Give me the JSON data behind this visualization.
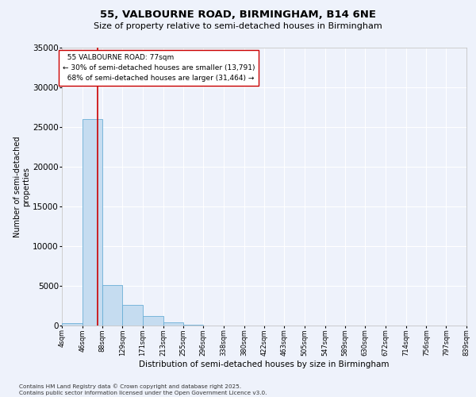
{
  "title_line1": "55, VALBOURNE ROAD, BIRMINGHAM, B14 6NE",
  "title_line2": "Size of property relative to semi-detached houses in Birmingham",
  "xlabel": "Distribution of semi-detached houses by size in Birmingham",
  "ylabel": "Number of semi-detached\nproperties",
  "footnote": "Contains HM Land Registry data © Crown copyright and database right 2025.\nContains public sector information licensed under the Open Government Licence v3.0.",
  "property_size": 77,
  "property_label": "55 VALBOURNE ROAD: 77sqm",
  "pct_smaller": 30,
  "pct_larger": 68,
  "count_smaller": 13791,
  "count_larger": 31464,
  "bin_labels": [
    "4sqm",
    "46sqm",
    "88sqm",
    "129sqm",
    "171sqm",
    "213sqm",
    "255sqm",
    "296sqm",
    "338sqm",
    "380sqm",
    "422sqm",
    "463sqm",
    "505sqm",
    "547sqm",
    "589sqm",
    "630sqm",
    "672sqm",
    "714sqm",
    "756sqm",
    "797sqm",
    "839sqm"
  ],
  "bin_edges": [
    4,
    46,
    88,
    129,
    171,
    213,
    255,
    296,
    338,
    380,
    422,
    463,
    505,
    547,
    589,
    630,
    672,
    714,
    756,
    797,
    839
  ],
  "bar_heights": [
    300,
    26000,
    5100,
    2600,
    1200,
    450,
    100,
    40,
    10,
    5,
    3,
    2,
    1,
    0,
    0,
    0,
    0,
    0,
    0,
    0
  ],
  "bar_color": "#c5dcf0",
  "bar_edge_color": "#6aaed6",
  "red_line_color": "#cc0000",
  "annotation_box_color": "#cc0000",
  "background_color": "#eef2fb",
  "grid_color": "#ffffff",
  "ylim": [
    0,
    35000
  ],
  "yticks": [
    0,
    5000,
    10000,
    15000,
    20000,
    25000,
    30000,
    35000
  ]
}
